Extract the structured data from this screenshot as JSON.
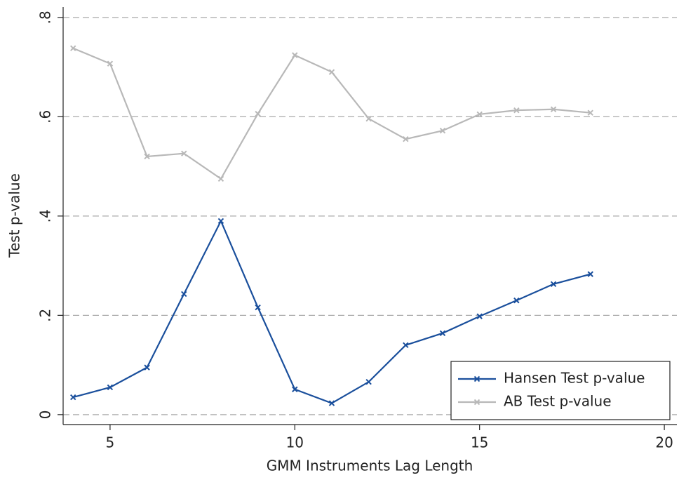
{
  "chart_data": {
    "type": "line",
    "x_label": "GMM Instruments Lag Length",
    "y_label": "Test p-value",
    "x": [
      4,
      5,
      6,
      7,
      8,
      9,
      10,
      11,
      12,
      13,
      14,
      15,
      16,
      17,
      18
    ],
    "series": [
      {
        "name": "Hansen Test p-value",
        "color": "#1a4f9c",
        "values": [
          0.035,
          0.055,
          0.095,
          0.243,
          0.39,
          0.216,
          0.051,
          0.023,
          0.066,
          0.14,
          0.164,
          0.198,
          0.23,
          0.263,
          0.283
        ]
      },
      {
        "name": "AB Test p-value",
        "color": "#b8b8b8",
        "values": [
          0.738,
          0.707,
          0.52,
          0.526,
          0.475,
          0.606,
          0.724,
          0.69,
          0.596,
          0.555,
          0.572,
          0.605,
          0.613,
          0.615,
          0.608
        ]
      }
    ],
    "xlim": [
      3.73,
      20.34
    ],
    "ylim": [
      -0.02,
      0.821
    ],
    "xticks": [
      5,
      10,
      15,
      20
    ],
    "yticks": [
      0,
      {
        "value": 0.2,
        "label": ".2"
      },
      {
        "value": 0.4,
        "label": ".4"
      },
      {
        "value": 0.6,
        "label": ".6"
      },
      {
        "value": 0.8,
        "label": ".8"
      }
    ],
    "grid": true,
    "legend": "lower right"
  }
}
